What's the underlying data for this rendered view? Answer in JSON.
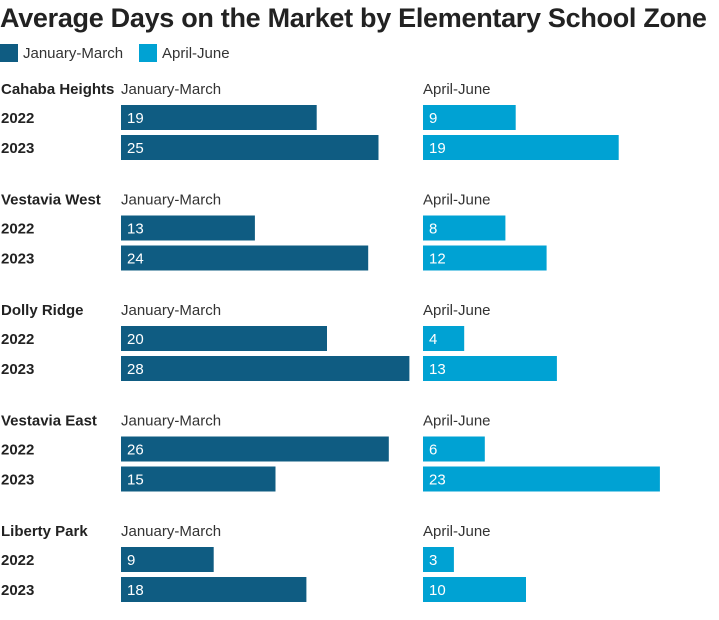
{
  "chart_data": {
    "type": "bar",
    "title": "Average Days on the Market by Elementary School Zone",
    "legend": [
      {
        "name": "January-March",
        "color": "#0f5c82"
      },
      {
        "name": "April-June",
        "color": "#00a2d3"
      }
    ],
    "years": [
      "2022",
      "2023"
    ],
    "xlim": [
      0,
      28
    ],
    "zones": [
      {
        "name": "Cahaba Heights",
        "jan_mar": [
          19,
          25
        ],
        "apr_jun": [
          9,
          19
        ]
      },
      {
        "name": "Vestavia West",
        "jan_mar": [
          13,
          24
        ],
        "apr_jun": [
          8,
          12
        ]
      },
      {
        "name": "Dolly Ridge",
        "jan_mar": [
          20,
          28
        ],
        "apr_jun": [
          4,
          13
        ]
      },
      {
        "name": "Vestavia East",
        "jan_mar": [
          26,
          15
        ],
        "apr_jun": [
          6,
          23
        ]
      },
      {
        "name": "Liberty Park",
        "jan_mar": [
          9,
          18
        ],
        "apr_jun": [
          3,
          10
        ]
      }
    ]
  }
}
